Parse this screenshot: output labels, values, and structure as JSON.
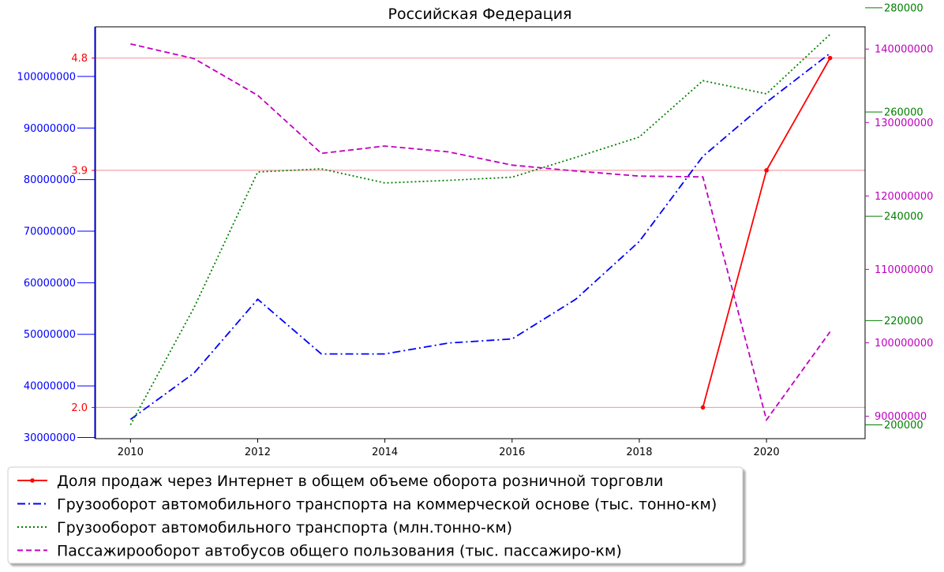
{
  "chart_data": {
    "type": "line",
    "title": "Российская Федерация",
    "x": [
      2010,
      2011,
      2012,
      2013,
      2014,
      2015,
      2016,
      2017,
      2018,
      2019,
      2020,
      2021
    ],
    "xlim": [
      2009.45,
      2021.55
    ],
    "x_ticks": [
      "2010",
      "2012",
      "2014",
      "2016",
      "2018",
      "2020"
    ],
    "x_tick_values": [
      2010,
      2012,
      2014,
      2016,
      2018,
      2020
    ],
    "legend_placement": "below",
    "series": [
      {
        "name": "Доля продаж через Интернет в общем объеме оборота розничной торговли",
        "axis": "red",
        "color": "#ff0000",
        "style": "solid-marker",
        "values": [
          null,
          null,
          null,
          null,
          null,
          null,
          null,
          null,
          null,
          2.0,
          3.9,
          4.8
        ]
      },
      {
        "name": "Грузооборот автомобильного транспорта на коммерческой основе (тыс. тонно-км)",
        "axis": "blue",
        "color": "#0000ff",
        "style": "dashdot",
        "values": [
          33500000,
          42500000,
          56800000,
          46200000,
          46200000,
          48300000,
          49100000,
          56800000,
          68000000,
          84500000,
          95000000,
          104500000
        ]
      },
      {
        "name": "Грузооборот автомобильного транспорта (млн.тонно-км)",
        "axis": "green",
        "color": "#008000",
        "style": "dotted",
        "values": [
          200000,
          222500,
          248500,
          249100,
          246400,
          246900,
          247500,
          251300,
          255200,
          266000,
          263500,
          274900
        ]
      },
      {
        "name": "Пассажирооборот автобусов общего пользования (тыс. пассажиро-км)",
        "axis": "magenta",
        "color": "#bf00bf",
        "style": "dashed",
        "values": [
          140700000,
          138700000,
          133700000,
          125800000,
          126800000,
          126000000,
          124200000,
          123400000,
          122700000,
          122600000,
          89500000,
          101500000
        ]
      }
    ],
    "axes": {
      "red": {
        "side": "left-inner",
        "color": "#ff0000",
        "ylim": [
          1.75,
          5.05
        ],
        "ticks": [
          2.0,
          3.9,
          4.8
        ],
        "tick_labels": [
          "2.0",
          "3.9",
          "4.8"
        ],
        "hlines": true
      },
      "blue": {
        "side": "left-outer",
        "color": "#0000ff",
        "ylim": [
          29766000,
          109620000
        ],
        "ticks": [
          30000000,
          40000000,
          50000000,
          60000000,
          70000000,
          80000000,
          90000000,
          100000000
        ],
        "tick_labels": [
          "30000000",
          "40000000",
          "50000000",
          "60000000",
          "70000000",
          "80000000",
          "90000000",
          "100000000"
        ]
      },
      "green": {
        "side": "right-outer",
        "color": "#008000",
        "ylim": [
          197350,
          276340
        ],
        "ticks": [
          200000,
          220000,
          240000,
          260000,
          280000
        ],
        "tick_labels": [
          "200000",
          "220000",
          "240000",
          "260000",
          "280000"
        ]
      },
      "magenta": {
        "side": "right-inner",
        "color": "#bf00bf",
        "ylim": [
          86946000,
          143030000
        ],
        "ticks": [
          90000000,
          100000000,
          110000000,
          120000000,
          130000000,
          140000000
        ],
        "tick_labels": [
          "90000000",
          "100000000",
          "110000000",
          "120000000",
          "130000000",
          "140000000"
        ]
      }
    }
  }
}
